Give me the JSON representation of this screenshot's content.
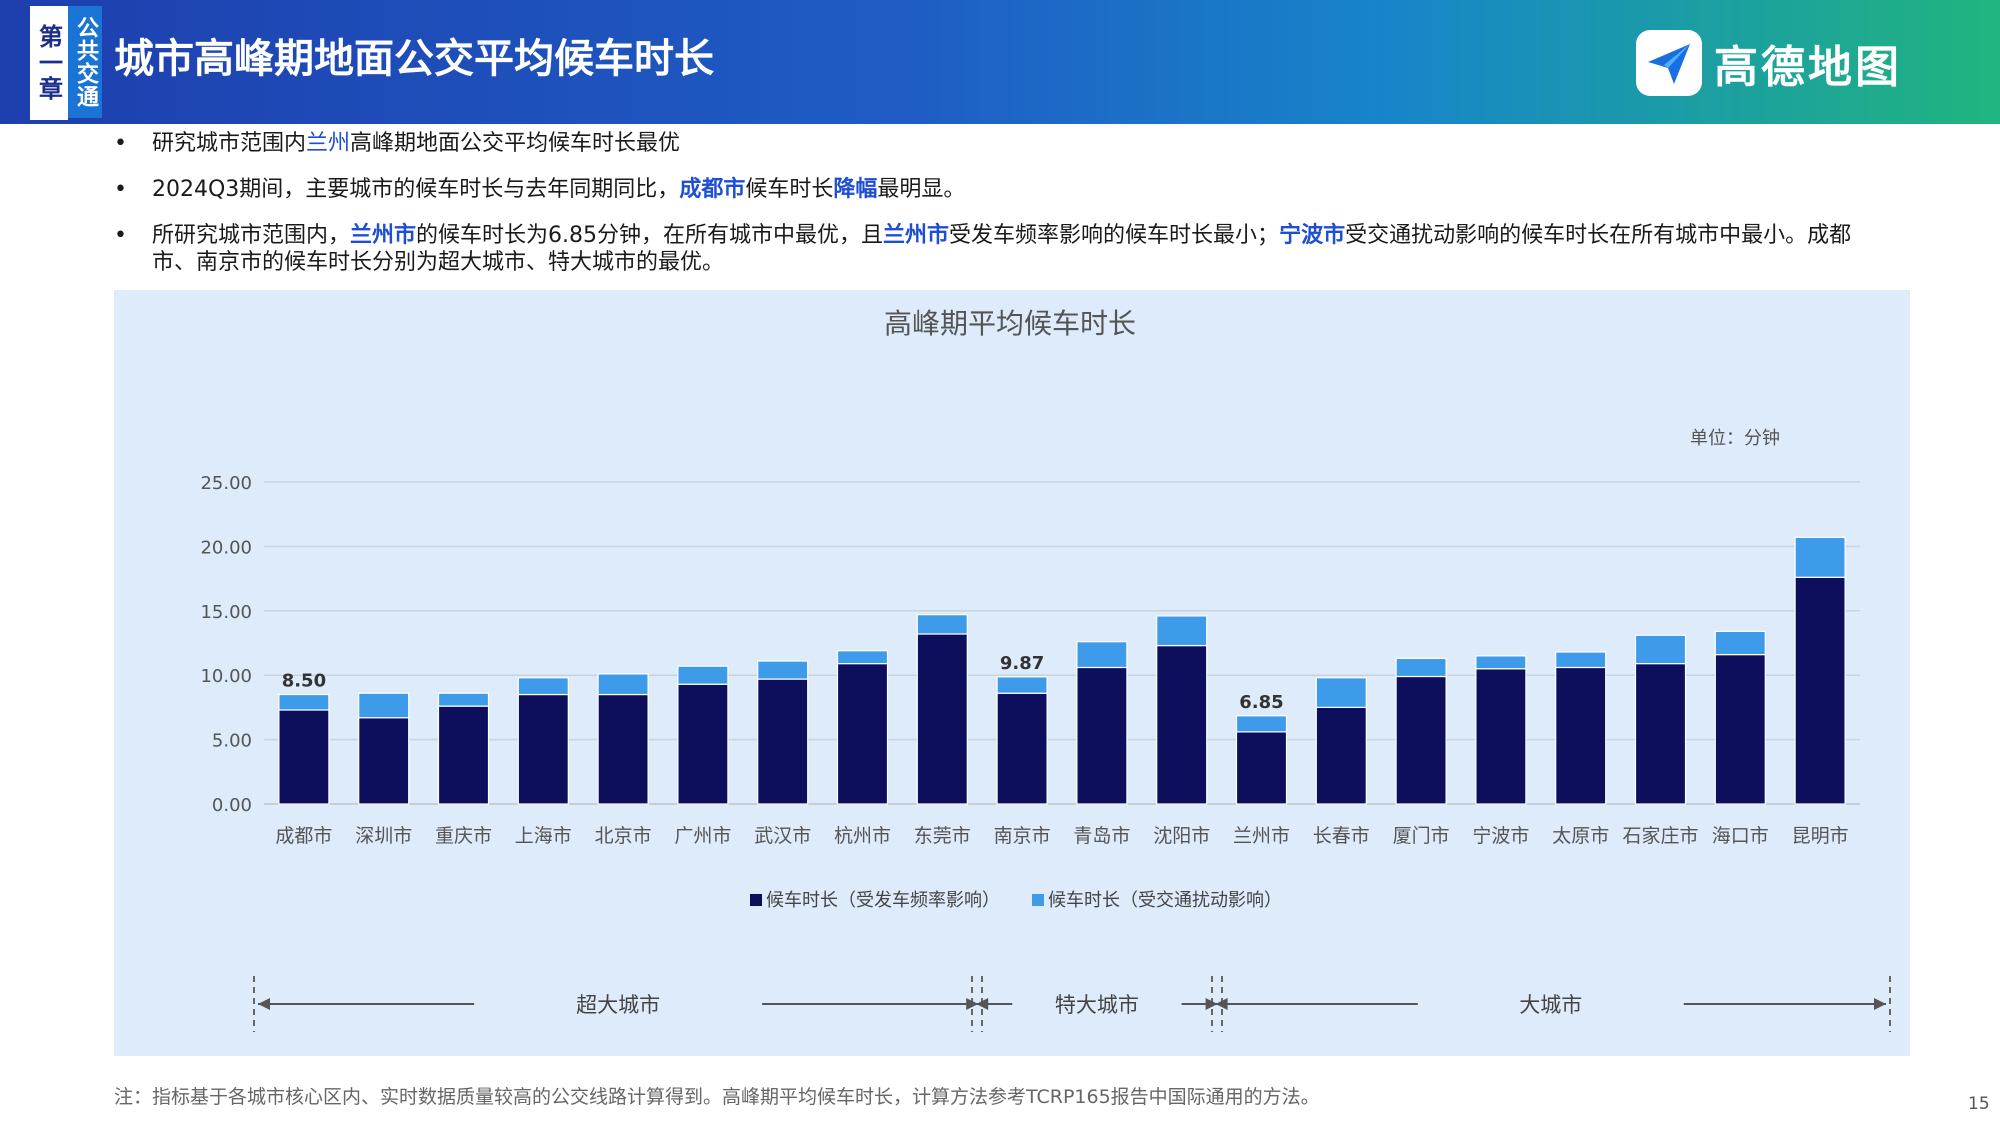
{
  "header": {
    "chapter": "第一章",
    "section": "公共交通",
    "title": "城市高峰期地面公交平均候车时长",
    "brand": "高德地图"
  },
  "bullets": [
    {
      "segments": [
        {
          "text": "研究城市范围内",
          "style": "normal"
        },
        {
          "text": "兰州",
          "style": "accent"
        },
        {
          "text": "高峰期地面公交平均候车时长最优",
          "style": "normal"
        }
      ]
    },
    {
      "segments": [
        {
          "text": "2024Q3期间，主要城市的候车时长与去年同期同比，",
          "style": "normal"
        },
        {
          "text": "成都市",
          "style": "bold"
        },
        {
          "text": "候车时长",
          "style": "normal"
        },
        {
          "text": "降幅",
          "style": "bold"
        },
        {
          "text": "最明显。",
          "style": "normal"
        }
      ]
    },
    {
      "segments": [
        {
          "text": "所研究城市范围内，",
          "style": "normal"
        },
        {
          "text": "兰州市",
          "style": "bold"
        },
        {
          "text": "的候车时长为6.85分钟，在所有城市中最优，且",
          "style": "normal"
        },
        {
          "text": "兰州市",
          "style": "bold"
        },
        {
          "text": "受发车频率影响的候车时长最小；",
          "style": "normal"
        },
        {
          "text": "宁波市",
          "style": "bold"
        },
        {
          "text": "受交通扰动影响的候车时长在所有城市中最小。成都市、南京市的候车时长分别为超大城市、特大城市的最优。",
          "style": "normal"
        }
      ]
    }
  ],
  "chart_data": {
    "type": "bar",
    "stacked": true,
    "title": "高峰期平均候车时长",
    "unit_label": "单位：分钟",
    "categories": [
      "成都市",
      "深圳市",
      "重庆市",
      "上海市",
      "北京市",
      "广州市",
      "武汉市",
      "杭州市",
      "东莞市",
      "南京市",
      "青岛市",
      "沈阳市",
      "兰州市",
      "长春市",
      "厦门市",
      "宁波市",
      "太原市",
      "石家庄市",
      "海口市",
      "昆明市"
    ],
    "series": [
      {
        "name": "候车时长（受发车频率影响）",
        "color": "#0d0f5c",
        "values": [
          7.3,
          6.7,
          7.6,
          8.5,
          8.5,
          9.3,
          9.7,
          10.9,
          13.2,
          8.6,
          10.6,
          12.3,
          5.6,
          7.5,
          9.9,
          10.5,
          10.6,
          10.9,
          11.6,
          17.6
        ]
      },
      {
        "name": "候车时长（受交通扰动影响）",
        "color": "#3d9be9",
        "values": [
          1.2,
          1.9,
          1.0,
          1.3,
          1.6,
          1.4,
          1.4,
          1.0,
          1.5,
          1.27,
          2.0,
          2.3,
          1.25,
          2.3,
          1.4,
          1.0,
          1.2,
          2.2,
          1.8,
          3.1
        ]
      }
    ],
    "data_labels": [
      {
        "category": "成都市",
        "text": "8.50"
      },
      {
        "category": "南京市",
        "text": "9.87"
      },
      {
        "category": "兰州市",
        "text": "6.85"
      }
    ],
    "y_ticks": [
      "0.00",
      "5.00",
      "10.00",
      "15.00",
      "20.00",
      "25.00"
    ],
    "ylim": [
      0,
      25
    ],
    "grid": true,
    "legend_position": "bottom",
    "groups": [
      {
        "label": "超大城市",
        "from": "成都市",
        "to": "东莞市"
      },
      {
        "label": "特大城市",
        "from": "南京市",
        "to": "沈阳市"
      },
      {
        "label": "大城市",
        "from": "兰州市",
        "to": "昆明市"
      }
    ]
  },
  "footnote": "注：指标基于各城市核心区内、实时数据质量较高的公交线路计算得到。高峰期平均候车时长，计算方法参考TCRP165报告中国际通用的方法。",
  "page_number": "15",
  "colors": {
    "accent": "#1f4fd1",
    "bar_dark": "#0d0f5c",
    "bar_light": "#3d9be9",
    "panel_bg": "#ddebfb"
  }
}
